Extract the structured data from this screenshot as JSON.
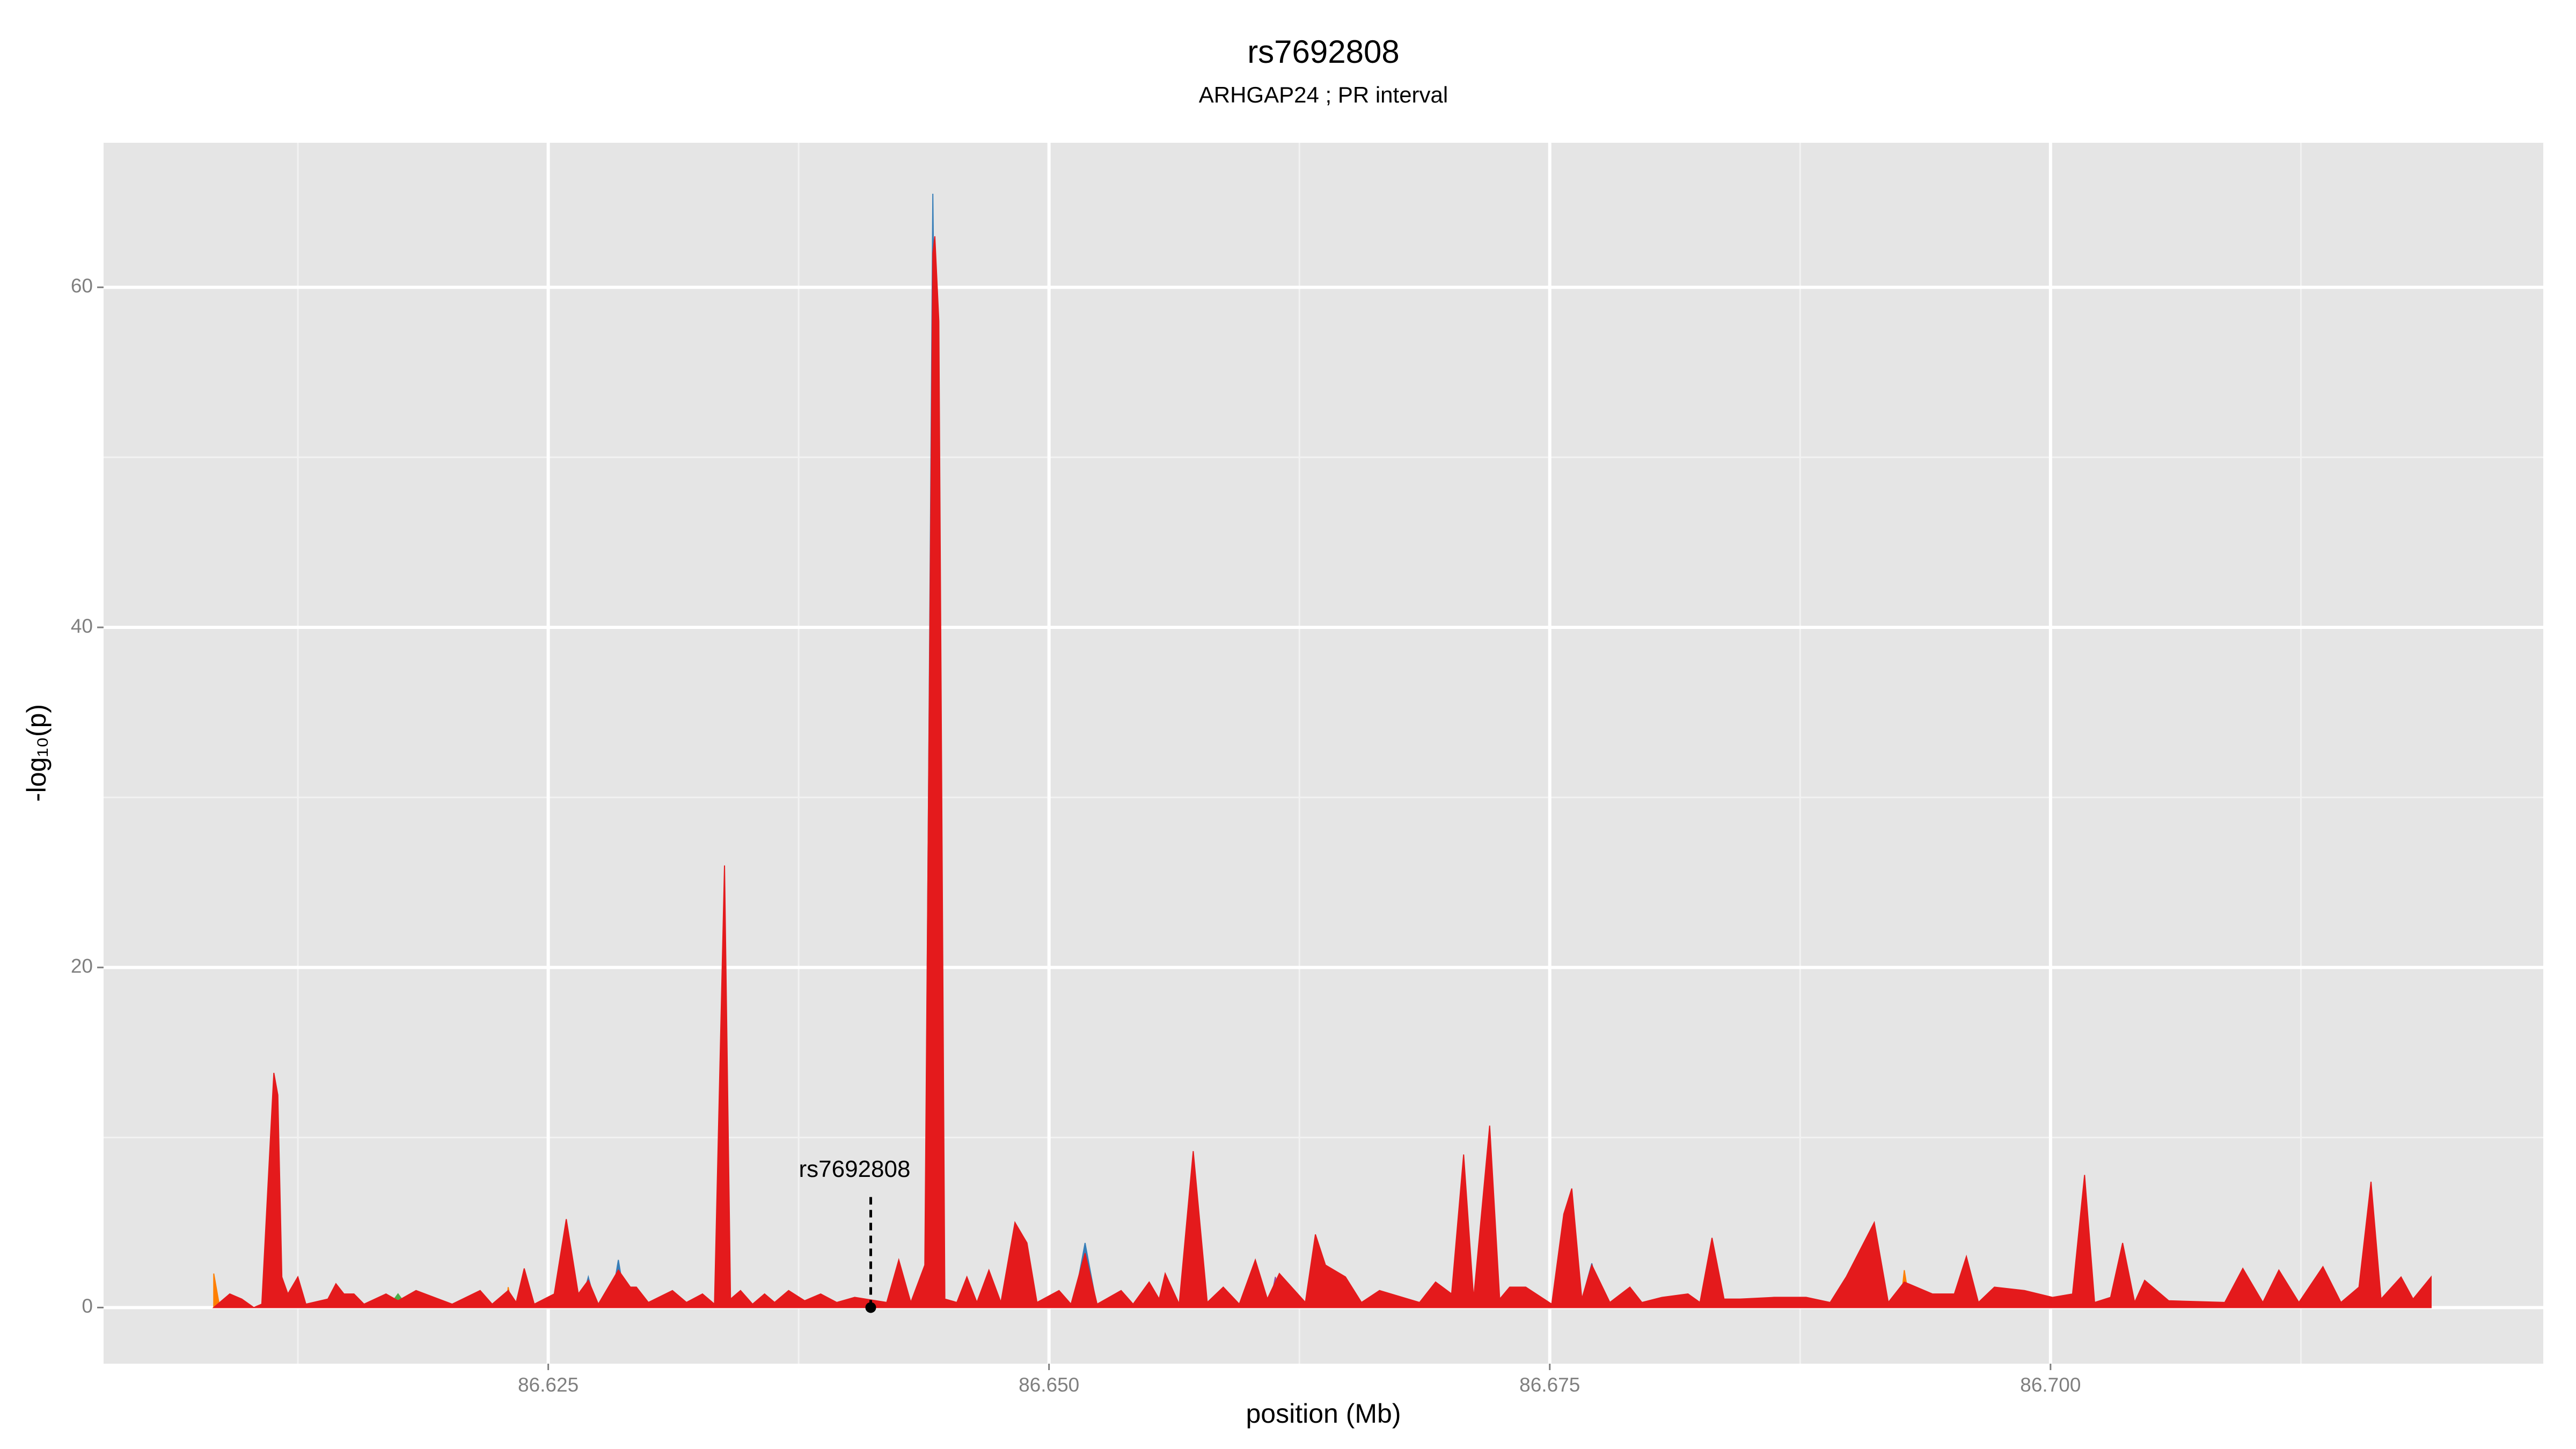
{
  "chart_data": {
    "type": "area",
    "title": "rs7692808",
    "subtitle": "ARHGAP24 ; PR interval",
    "x_label": "position (Mb)",
    "y_label": "-log₁₀(p)",
    "xlim": [
      86.6028,
      86.7246
    ],
    "ylim": [
      -3.3,
      68.5
    ],
    "xticks": [
      86.625,
      {
        "value": 86.65,
        "label": "86.650"
      },
      86.675,
      {
        "value": 86.7,
        "label": "86.700"
      }
    ],
    "yticks": [
      0,
      20,
      40,
      60
    ],
    "x_minor_grid": [
      86.6125,
      86.6375,
      86.6625,
      86.6875,
      86.7125
    ],
    "y_minor_grid": [
      10,
      30,
      50
    ],
    "grid": true,
    "series": [
      {
        "color": "#377eb8",
        "x": [
          86.6109,
          86.6113,
          86.6117,
          86.6266,
          86.627,
          86.6274,
          86.6281,
          86.6285,
          86.6289,
          86.6438,
          86.6442,
          86.6448,
          86.6512,
          86.6518,
          86.6524,
          86.6628,
          86.6633,
          86.664,
          86.6765,
          86.6771,
          86.6776
        ],
        "values": [
          0,
          4.5,
          0,
          0,
          1.8,
          0,
          0,
          2.8,
          0,
          0,
          65.5,
          0,
          0,
          3.8,
          0,
          0,
          2.6,
          0,
          0,
          2.6,
          0
        ]
      },
      {
        "color": "#ff7f00",
        "x": [
          86.6083,
          86.6086,
          86.6229,
          86.623,
          86.6232,
          86.6925,
          86.6927,
          86.693
        ],
        "values": [
          2,
          0,
          0,
          1.2,
          0,
          0,
          2.2,
          0
        ]
      },
      {
        "color": "#984ea3",
        "x": [
          86.661,
          86.6613,
          86.6617
        ],
        "values": [
          0,
          1.8,
          0
        ]
      },
      {
        "color": "#4daf4a",
        "x": [
          86.617,
          86.6175,
          86.618
        ],
        "values": [
          0,
          0.8,
          0
        ]
      },
      {
        "color": "#e41a1c",
        "x": [
          86.6083,
          86.6091,
          86.6097,
          86.6103,
          86.6107,
          86.6113,
          86.6115,
          86.6117,
          86.612,
          86.6125,
          86.6129,
          86.614,
          86.6144,
          86.6148,
          86.6153,
          86.6158,
          86.6169,
          86.6175,
          86.6184,
          86.6202,
          86.6216,
          86.6222,
          86.623,
          86.6234,
          86.6238,
          86.6243,
          86.6253,
          86.6259,
          86.6265,
          86.627,
          86.6275,
          86.6285,
          86.6291,
          86.6294,
          86.63,
          86.6312,
          86.6319,
          86.6327,
          86.6333,
          86.6338,
          86.6341,
          86.6346,
          86.6352,
          86.6358,
          86.6363,
          86.637,
          86.6378,
          86.6386,
          86.6394,
          86.6403,
          86.6419,
          86.6425,
          86.6431,
          86.6438,
          86.6442,
          86.6443,
          86.6445,
          86.6448,
          86.6454,
          86.6459,
          86.6464,
          86.647,
          86.6476,
          86.6483,
          86.6489,
          86.6494,
          86.6505,
          86.6511,
          86.6518,
          86.6524,
          86.6536,
          86.6542,
          86.655,
          86.6555,
          86.6558,
          86.6565,
          86.6572,
          86.6579,
          86.6587,
          86.6595,
          86.6603,
          86.6609,
          86.6615,
          86.6628,
          86.6633,
          86.6638,
          86.6648,
          86.6656,
          86.6665,
          86.6685,
          86.6693,
          86.6701,
          86.6707,
          86.6712,
          86.672,
          86.6725,
          86.673,
          86.6738,
          86.6751,
          86.6757,
          86.6761,
          86.6766,
          86.6771,
          86.678,
          86.679,
          86.6796,
          86.6806,
          86.6819,
          86.6825,
          86.6831,
          86.6837,
          86.6845,
          86.6862,
          86.6878,
          86.689,
          86.6898,
          86.6912,
          86.6919,
          86.6927,
          86.6941,
          86.6952,
          86.6958,
          86.6964,
          86.6972,
          86.6987,
          86.7001,
          86.7011,
          86.7017,
          86.7022,
          86.703,
          86.7036,
          86.7042,
          86.7047,
          86.7059,
          86.7087,
          86.7096,
          86.7106,
          86.7114,
          86.7124,
          86.7136,
          86.7145,
          86.7154,
          86.716,
          86.7165,
          86.7175,
          86.7181,
          86.719
        ],
        "values": [
          0,
          0.8,
          0.5,
          0,
          0.2,
          13.8,
          12.5,
          1.8,
          0.8,
          1.8,
          0.2,
          0.5,
          1.4,
          0.8,
          0.8,
          0.2,
          0.8,
          0.4,
          1.0,
          0.2,
          1.0,
          0.2,
          1.0,
          0.3,
          2.3,
          0.2,
          0.8,
          5.2,
          0.8,
          1.6,
          0.2,
          2.2,
          1.2,
          1.2,
          0.3,
          1.0,
          0.3,
          0.8,
          0.2,
          26.0,
          0.5,
          1.0,
          0.2,
          0.8,
          0.3,
          1.0,
          0.4,
          0.8,
          0.3,
          0.6,
          0.3,
          2.8,
          0.3,
          2.5,
          62,
          63,
          58,
          0.5,
          0.3,
          1.8,
          0.3,
          2.2,
          0.3,
          5.0,
          3.8,
          0.3,
          1.0,
          0.2,
          3.2,
          0.2,
          1.0,
          0.2,
          1.5,
          0.5,
          2.0,
          0.2,
          9.2,
          0.3,
          1.2,
          0.2,
          2.8,
          0.5,
          2.0,
          0.3,
          4.3,
          2.5,
          1.8,
          0.3,
          1.0,
          0.3,
          1.5,
          0.8,
          9.0,
          0.5,
          10.7,
          0.5,
          1.2,
          1.2,
          0.2,
          5.5,
          7.0,
          0.5,
          2.5,
          0.3,
          1.2,
          0.3,
          0.6,
          0.8,
          0.3,
          4.1,
          0.5,
          0.5,
          0.6,
          0.6,
          0.3,
          1.8,
          5.0,
          0.3,
          1.5,
          0.8,
          0.8,
          3.0,
          0.3,
          1.2,
          1.0,
          0.6,
          0.8,
          7.8,
          0.3,
          0.6,
          3.8,
          0.3,
          1.6,
          0.4,
          0.3,
          2.3,
          0.3,
          2.2,
          0.3,
          2.4,
          0.3,
          1.2,
          7.4,
          0.5,
          1.8,
          0.5,
          1.8
        ]
      }
    ],
    "annotation": {
      "label": "rs7692808",
      "x": 86.6411,
      "y": 0
    }
  }
}
